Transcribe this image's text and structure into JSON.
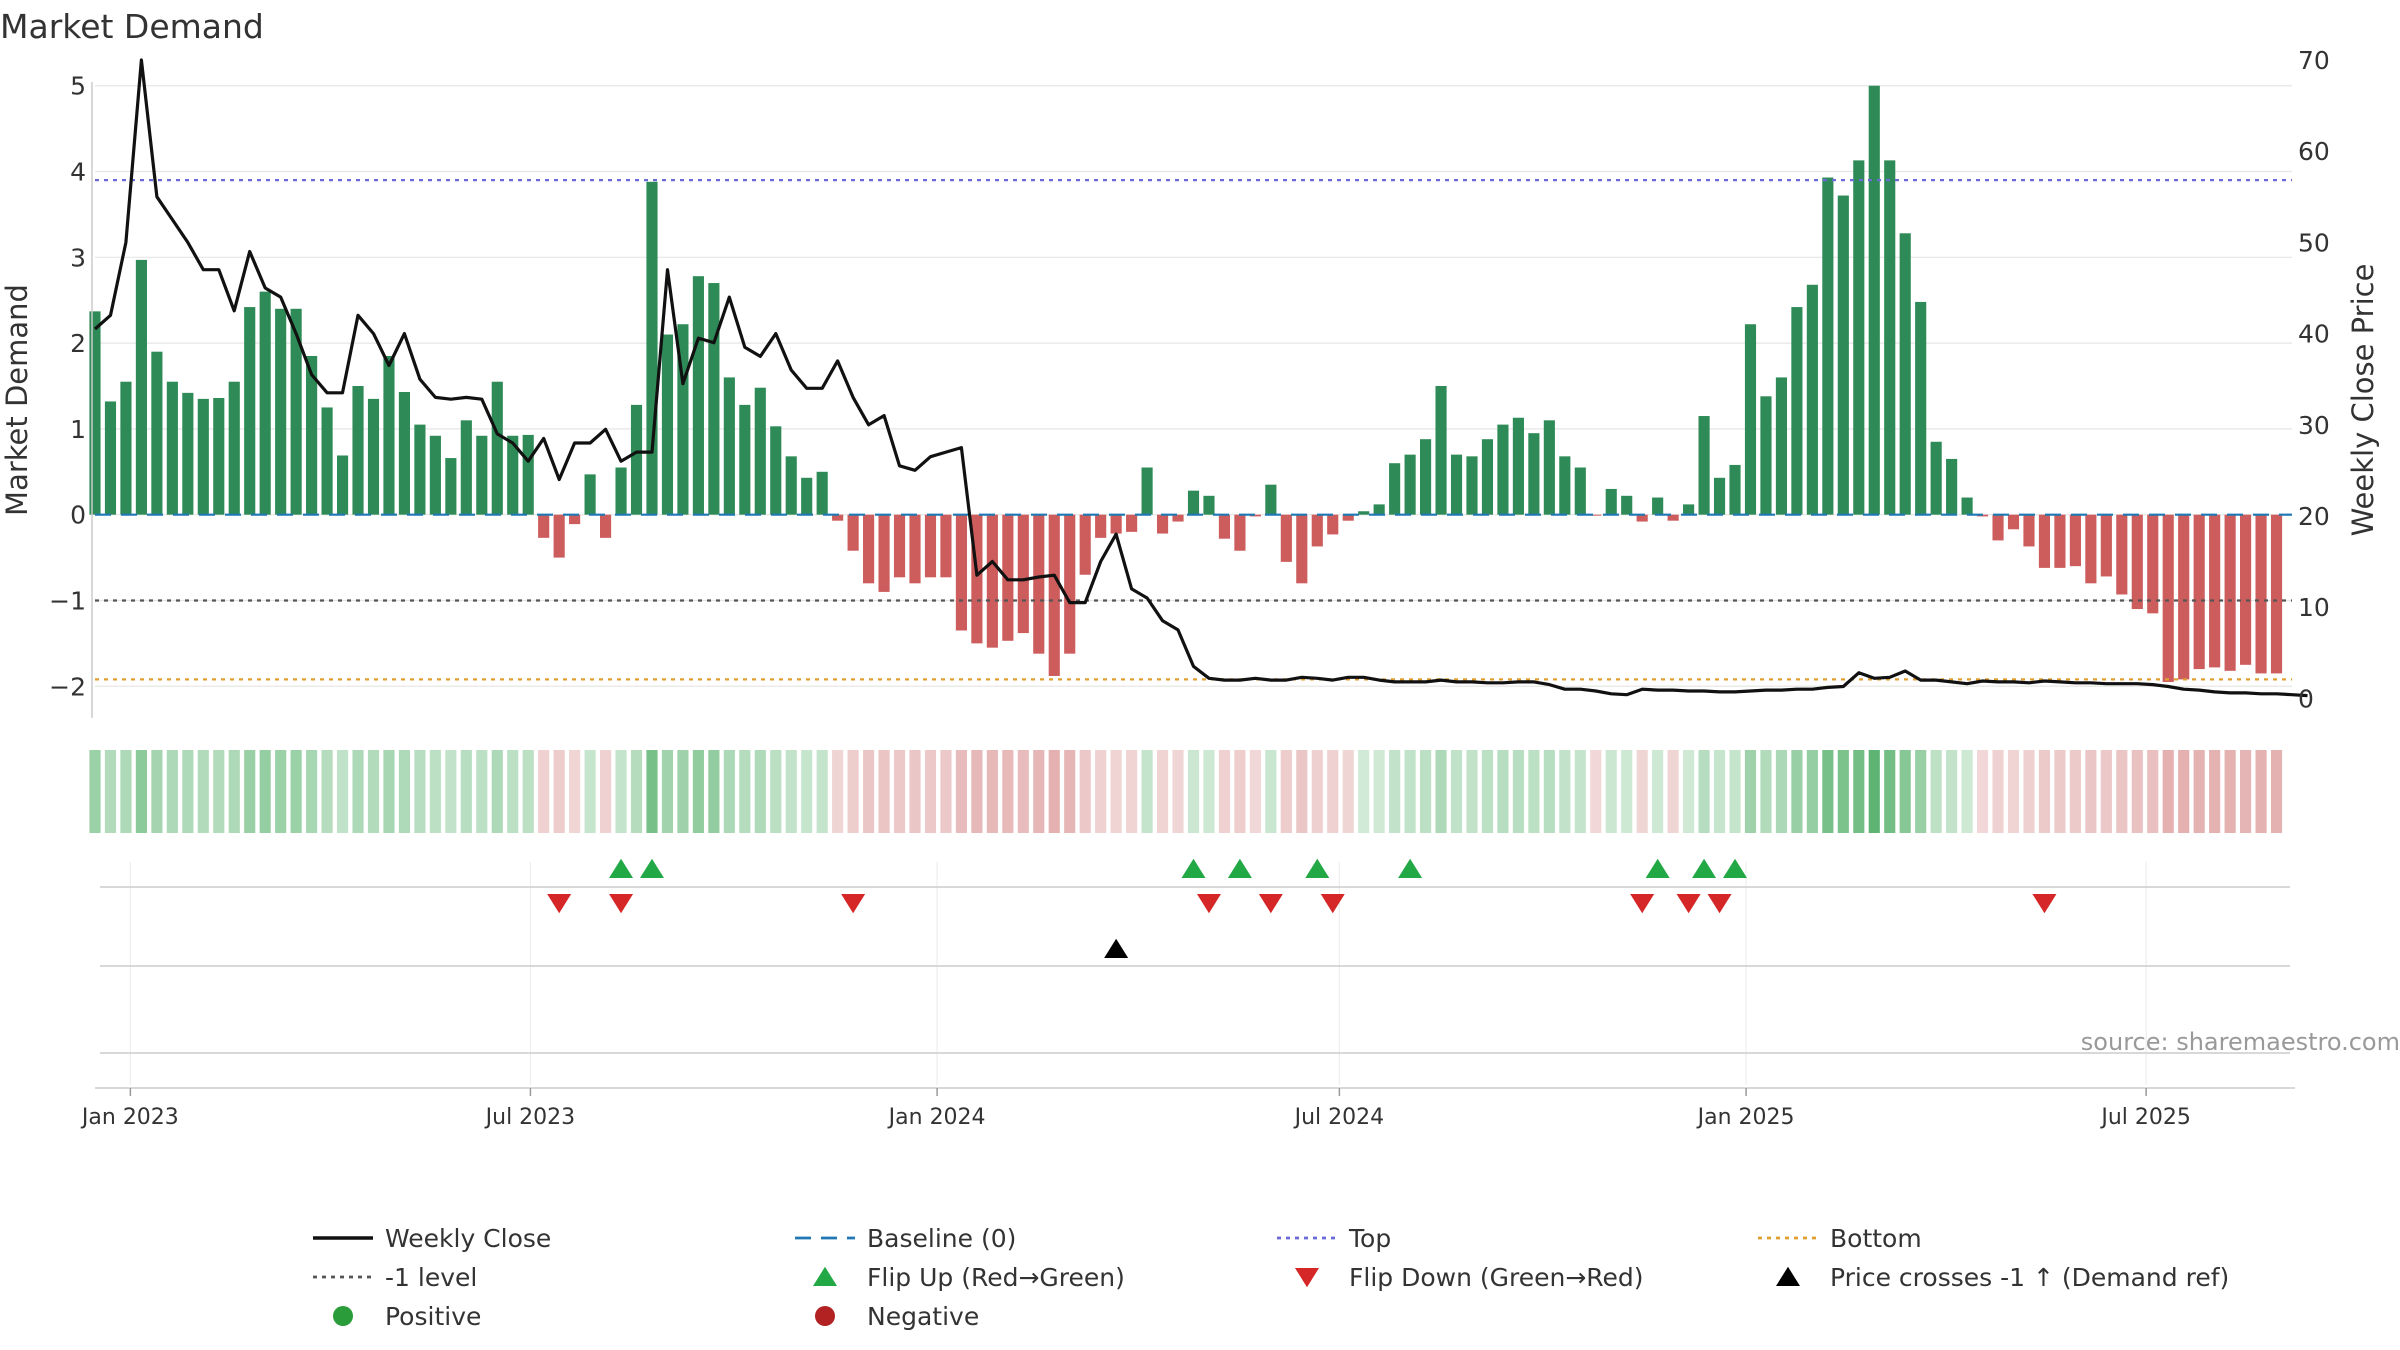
{
  "chart_data": {
    "type": "bar",
    "title": "Market Demand",
    "ylabel": "Market Demand",
    "y2label": "Weekly Close Price",
    "ylim": [
      -2.3,
      5.3
    ],
    "y2lim": [
      -1.5,
      70.0
    ],
    "yticks": [
      5,
      4,
      3,
      2,
      1,
      0,
      -1,
      -2
    ],
    "ytick_labels": [
      "5",
      "4",
      "3",
      "2",
      "1",
      "0",
      "−1",
      "−2"
    ],
    "y2ticks": [
      70,
      60,
      50,
      40,
      30,
      20,
      10,
      0
    ],
    "y2tick_labels": [
      "70",
      "60",
      "50",
      "40",
      "30",
      "20",
      "10",
      "0"
    ],
    "xticks": [
      "2023-01-01",
      "2023-07-01",
      "2024-01-01",
      "2024-07-01",
      "2025-01-01",
      "2025-07-01"
    ],
    "xtick_labels": [
      "Jan 2023",
      "Jul 2023",
      "Jan 2024",
      "Jul 2024",
      "Jan 2025",
      "Jul 2025"
    ],
    "start_date": "2022-12-16",
    "end_date": "2025-09-05",
    "week_step_days": 7,
    "levels": {
      "top": 3.9,
      "minus_one": -1.0,
      "bottom": -1.92,
      "baseline": 0
    },
    "demand": [
      2.37,
      1.32,
      1.55,
      2.97,
      1.9,
      1.55,
      1.42,
      1.35,
      1.36,
      1.55,
      2.42,
      2.6,
      2.4,
      2.4,
      1.85,
      1.25,
      0.69,
      1.5,
      1.35,
      1.85,
      1.43,
      1.05,
      0.92,
      0.66,
      1.1,
      0.92,
      1.55,
      0.92,
      0.93,
      -0.27,
      -0.5,
      -0.11,
      0.47,
      -0.27,
      0.55,
      1.28,
      3.88,
      2.1,
      2.22,
      2.78,
      2.7,
      1.6,
      1.28,
      1.48,
      1.03,
      0.68,
      0.43,
      0.5,
      -0.07,
      -0.42,
      -0.8,
      -0.9,
      -0.73,
      -0.8,
      -0.73,
      -0.73,
      -1.35,
      -1.5,
      -1.55,
      -1.47,
      -1.38,
      -1.62,
      -1.88,
      -1.62,
      -0.7,
      -0.27,
      -0.22,
      -0.2,
      0.55,
      -0.22,
      -0.08,
      0.28,
      0.22,
      -0.28,
      -0.42,
      -0.02,
      0.35,
      -0.55,
      -0.8,
      -0.37,
      -0.23,
      -0.07,
      0.04,
      0.12,
      0.6,
      0.7,
      0.88,
      1.5,
      0.7,
      0.68,
      0.88,
      1.05,
      1.13,
      0.95,
      1.1,
      0.68,
      0.55,
      -0.01,
      0.3,
      0.22,
      -0.08,
      0.2,
      -0.07,
      0.12,
      1.15,
      0.43,
      0.58,
      2.22,
      1.38,
      1.6,
      2.42,
      2.68,
      3.93,
      3.72,
      4.13,
      5.0,
      4.13,
      3.28,
      2.48,
      0.85,
      0.65,
      0.2,
      -0.02,
      -0.3,
      -0.17,
      -0.37,
      -0.62,
      -0.62,
      -0.6,
      -0.8,
      -0.72,
      -0.93,
      -1.1,
      -1.15,
      -1.95,
      -1.92,
      -1.8,
      -1.78,
      -1.82,
      -1.75,
      -1.85,
      -1.85
    ],
    "close": [
      40.5,
      42.0,
      50.0,
      70.0,
      55.0,
      52.5,
      50.0,
      47.0,
      47.0,
      42.5,
      49.0,
      45.0,
      44.0,
      40.0,
      35.5,
      33.5,
      33.5,
      42.0,
      40.0,
      36.5,
      40.0,
      35.0,
      33.0,
      32.8,
      33.0,
      32.8,
      29.0,
      28.0,
      26.0,
      28.5,
      24.0,
      28.0,
      28.0,
      29.5,
      26.0,
      27.0,
      27.0,
      47.0,
      34.5,
      39.5,
      39.0,
      44.0,
      38.5,
      37.5,
      40.0,
      36.0,
      34.0,
      34.0,
      37.0,
      33.0,
      30.0,
      31.0,
      25.5,
      25.0,
      26.5,
      27.0,
      27.5,
      13.5,
      15.0,
      13.0,
      13.0,
      13.3,
      13.5,
      10.5,
      10.5,
      15.0,
      18.0,
      12.0,
      11.0,
      8.5,
      7.5,
      3.5,
      2.2,
      2.0,
      2.0,
      2.2,
      2.0,
      2.0,
      2.3,
      2.2,
      2.0,
      2.3,
      2.3,
      2.0,
      1.8,
      1.8,
      1.8,
      2.0,
      1.8,
      1.8,
      1.7,
      1.7,
      1.8,
      1.8,
      1.5,
      1.0,
      1.0,
      0.8,
      0.5,
      0.4,
      1.0,
      0.9,
      0.9,
      0.8,
      0.8,
      0.7,
      0.7,
      0.8,
      0.9,
      0.9,
      1.0,
      1.0,
      1.2,
      1.3,
      2.8,
      2.2,
      2.3,
      3.0,
      2.0,
      2.0,
      1.8,
      1.6,
      1.9,
      1.8,
      1.8,
      1.7,
      1.9,
      1.8,
      1.7,
      1.7,
      1.6,
      1.6,
      1.6,
      1.5,
      1.3,
      1.0,
      0.9,
      0.7,
      0.6,
      0.6,
      0.5,
      0.5,
      0.4,
      0.3
    ],
    "flip_up_weeks": [
      34,
      36,
      71,
      74,
      79,
      85,
      101,
      104,
      106
    ],
    "flip_down_weeks": [
      30,
      34,
      49,
      72,
      76,
      80,
      100,
      103,
      105,
      126
    ],
    "price_cross_weeks": [
      66
    ],
    "source_text": "source: sharemaestro.com",
    "legend": [
      {
        "label": "Weekly Close",
        "marker": "line-solid",
        "color": "#111111"
      },
      {
        "label": "Baseline (0)",
        "marker": "line-dash",
        "color": "#1f77b4"
      },
      {
        "label": "Top",
        "marker": "line-dot",
        "color": "#6a6ad8"
      },
      {
        "label": "Bottom",
        "marker": "line-dot",
        "color": "#e0a030"
      },
      {
        "label": "-1 level",
        "marker": "line-dot",
        "color": "#555555"
      },
      {
        "label": "Flip Up (Red→Green)",
        "marker": "triangle-up",
        "color": "#22a845"
      },
      {
        "label": "Flip Down (Green→Red)",
        "marker": "triangle-down",
        "color": "#d62728"
      },
      {
        "label": "Price crosses -1 ↑ (Demand ref)",
        "marker": "triangle-up",
        "color": "#000000"
      },
      {
        "label": "Positive",
        "marker": "circle",
        "color": "#2a9d3a"
      },
      {
        "label": "Negative",
        "marker": "circle",
        "color": "#b22222"
      }
    ],
    "colors": {
      "positive_bar": "#2e8b57",
      "negative_bar": "#cd5c5c",
      "close_line": "#111111",
      "baseline": "#1f77b4",
      "top": "#6a6ad8",
      "bottom": "#e0a030",
      "minus_one": "#555555",
      "flip_up": "#22a845",
      "flip_down": "#d62728",
      "price_cross": "#000000",
      "grid": "#e6e6e6",
      "axis": "#cccccc"
    }
  }
}
